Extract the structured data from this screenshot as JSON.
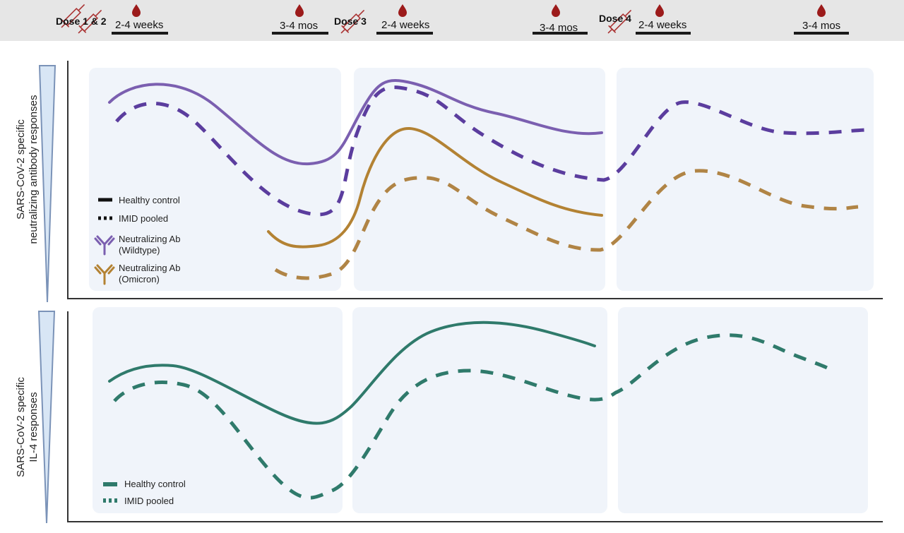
{
  "timeline": {
    "doses": {
      "dose12": "Dose 1 & 2",
      "dose3": "Dose 3",
      "dose4": "Dose 4"
    },
    "intervals": {
      "i1": "2-4 weeks",
      "i2": "3-4 mos",
      "i3": "2-4 weeks",
      "i4": "3-4 mos",
      "i5": "2-4 weeks",
      "i6": "3-4 mos"
    }
  },
  "top_panel": {
    "ylabel_line1": "SARS-CoV-2 specific",
    "ylabel_line2": "neutralizing antibody responses",
    "legend": {
      "healthy": "Healthy control",
      "imid": "IMID pooled",
      "wt_line1": "Neutralizing Ab",
      "wt_line2": "(Wildtype)",
      "om_line1": "Neutralizing Ab",
      "om_line2": "(Omicron)"
    }
  },
  "bottom_panel": {
    "ylabel_line1": "SARS-CoV-2 specific",
    "ylabel_line2": "IL-4 responses",
    "legend": {
      "healthy": "Healthy control",
      "imid": "IMID pooled"
    }
  },
  "colors": {
    "wildtype": "#7b5fb0",
    "wildtype_dash": "#5b3d9e",
    "omicron": "#b38233",
    "omicron_dash": "#b08445",
    "il4": "#2f7a6b",
    "blood_drop": "#9c1b1b",
    "panel_bg": "#f0f4fa",
    "triangle_fill": "#d8e6f5",
    "triangle_stroke": "#7b93b8"
  },
  "icons": {
    "syringe": "syringe-icon",
    "blood_drop": "blood-drop-icon",
    "antibody": "antibody-icon",
    "triangle": "gradient-triangle-icon"
  }
}
